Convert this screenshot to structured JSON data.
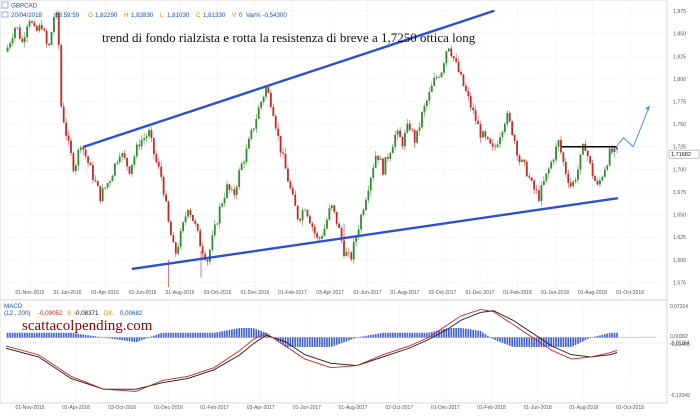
{
  "header": {
    "symbol": "GBPCAD",
    "date": "20/04/2018",
    "time": "23:59:59",
    "open": "1,82290",
    "high": "1,82830",
    "low": "1,81030",
    "close": "1,81330",
    "volume": "0",
    "var": "Var% -0,54300",
    "markers": [
      "O",
      "H",
      "L",
      "C",
      "V"
    ]
  },
  "chart_data": [
    {
      "type": "candlestick",
      "title": "trend di fondo rialzista e rotta la resistenza di breve a 1,7250 ottica long",
      "y_ticks": [
        "1,875",
        "1,850",
        "1,825",
        "1,800",
        "1,775",
        "1,750",
        "1,725",
        "1,700",
        "1,675",
        "1,650",
        "1,625",
        "1,600",
        "1,575"
      ],
      "ylim": [
        1.56,
        1.885
      ],
      "x_ticks": [
        "01-Nov-2015",
        "01-Jan-2016",
        "01-Apr-2016",
        "02-Jun-2016",
        "01-Aug-2016",
        "03-Oct-2016",
        "01-Dec-2016",
        "01-Feb-2017",
        "03-Apr-2017",
        "01-Jun-2017",
        "01-Aug-2017",
        "02-Oct-2017",
        "01-Dec-2017",
        "01-Feb-2018",
        "01-Jun-2018",
        "01-Aug-2018",
        "01-Oct-2018"
      ],
      "price_label": "1,71682",
      "price_level": 1.7168,
      "resistance_level": 1.725,
      "price_path": [
        [
          0,
          1.83
        ],
        [
          3,
          1.86
        ],
        [
          5,
          1.84
        ],
        [
          7,
          1.87
        ],
        [
          9,
          1.85
        ],
        [
          11,
          1.86
        ],
        [
          13,
          1.83
        ],
        [
          15,
          1.875
        ],
        [
          16,
          1.86
        ],
        [
          17,
          1.77
        ],
        [
          19,
          1.73
        ],
        [
          21,
          1.7
        ],
        [
          23,
          1.73
        ],
        [
          26,
          1.7
        ],
        [
          29,
          1.67
        ],
        [
          32,
          1.69
        ],
        [
          35,
          1.72
        ],
        [
          38,
          1.7
        ],
        [
          41,
          1.73
        ],
        [
          44,
          1.74
        ],
        [
          46,
          1.71
        ],
        [
          48,
          1.69
        ],
        [
          50,
          1.64
        ],
        [
          52,
          1.605
        ],
        [
          54,
          1.63
        ],
        [
          56,
          1.66
        ],
        [
          58,
          1.64
        ],
        [
          60,
          1.615
        ],
        [
          62,
          1.6
        ],
        [
          64,
          1.63
        ],
        [
          66,
          1.66
        ],
        [
          68,
          1.68
        ],
        [
          70,
          1.67
        ],
        [
          72,
          1.7
        ],
        [
          74,
          1.72
        ],
        [
          76,
          1.745
        ],
        [
          78,
          1.77
        ],
        [
          80,
          1.79
        ],
        [
          82,
          1.77
        ],
        [
          84,
          1.73
        ],
        [
          86,
          1.7
        ],
        [
          88,
          1.67
        ],
        [
          90,
          1.645
        ],
        [
          92,
          1.66
        ],
        [
          94,
          1.64
        ],
        [
          96,
          1.62
        ],
        [
          98,
          1.635
        ],
        [
          100,
          1.66
        ],
        [
          102,
          1.64
        ],
        [
          104,
          1.61
        ],
        [
          106,
          1.6
        ],
        [
          108,
          1.63
        ],
        [
          110,
          1.66
        ],
        [
          112,
          1.69
        ],
        [
          114,
          1.72
        ],
        [
          116,
          1.7
        ],
        [
          118,
          1.72
        ],
        [
          120,
          1.74
        ],
        [
          122,
          1.73
        ],
        [
          124,
          1.75
        ],
        [
          126,
          1.73
        ],
        [
          128,
          1.76
        ],
        [
          130,
          1.78
        ],
        [
          132,
          1.8
        ],
        [
          134,
          1.81
        ],
        [
          136,
          1.84
        ],
        [
          138,
          1.82
        ],
        [
          140,
          1.8
        ],
        [
          142,
          1.78
        ],
        [
          144,
          1.76
        ],
        [
          146,
          1.74
        ],
        [
          148,
          1.73
        ],
        [
          150,
          1.72
        ],
        [
          152,
          1.74
        ],
        [
          154,
          1.76
        ],
        [
          156,
          1.74
        ],
        [
          158,
          1.71
        ],
        [
          160,
          1.7
        ],
        [
          162,
          1.68
        ],
        [
          164,
          1.67
        ],
        [
          166,
          1.69
        ],
        [
          168,
          1.71
        ],
        [
          170,
          1.73
        ],
        [
          172,
          1.7
        ],
        [
          174,
          1.68
        ],
        [
          176,
          1.7
        ],
        [
          178,
          1.73
        ],
        [
          180,
          1.7
        ],
        [
          182,
          1.68
        ],
        [
          184,
          1.7
        ],
        [
          186,
          1.72
        ],
        [
          188,
          1.717
        ]
      ],
      "x_max": 200,
      "channel_upper": [
        [
          24,
          1.725
        ],
        [
          150,
          1.875
        ]
      ],
      "channel_lower": [
        [
          39,
          1.59
        ],
        [
          188,
          1.668
        ]
      ],
      "resistance_segment": [
        [
          171,
          188
        ]
      ],
      "projection": [
        [
          186,
          1.717
        ],
        [
          190,
          1.735
        ],
        [
          193,
          1.725
        ],
        [
          198,
          1.77
        ]
      ]
    },
    {
      "type": "macd",
      "label": "MACD",
      "params": "(12 , 200)",
      "values": [
        "-0,09052",
        "-0,08371",
        "0,00682"
      ],
      "value_markers": [
        "S",
        "Dif."
      ],
      "y_ticks": [
        "0,07314",
        "0,00302",
        "-0,01164",
        "-0,01466",
        "-0,13349"
      ],
      "ylim": [
        -0.145,
        0.08
      ],
      "x_ticks": [
        "01-Nov-2015",
        "01-Apr-2016",
        "03-Oct-2016",
        "01-Dec-2016",
        "01-Feb-2017",
        "03-Apr-2017",
        "01-Jun-2017",
        "01-Aug-2017",
        "02-Oct-2017",
        "01-Dec-2017",
        "01-Feb-2018",
        "01-Jun-2018",
        "01-Aug-2018",
        "01-Oct-2018"
      ],
      "macd_line": [
        [
          0,
          -0.02
        ],
        [
          10,
          -0.04
        ],
        [
          20,
          -0.09
        ],
        [
          30,
          -0.12
        ],
        [
          40,
          -0.125
        ],
        [
          48,
          -0.1
        ],
        [
          56,
          -0.09
        ],
        [
          64,
          -0.07
        ],
        [
          72,
          -0.03
        ],
        [
          76,
          -0.005
        ],
        [
          80,
          0.01
        ],
        [
          86,
          -0.02
        ],
        [
          92,
          -0.05
        ],
        [
          100,
          -0.07
        ],
        [
          108,
          -0.065
        ],
        [
          116,
          -0.04
        ],
        [
          124,
          -0.02
        ],
        [
          130,
          0.0
        ],
        [
          136,
          0.03
        ],
        [
          140,
          0.05
        ],
        [
          146,
          0.065
        ],
        [
          150,
          0.06
        ],
        [
          156,
          0.03
        ],
        [
          162,
          0.0
        ],
        [
          168,
          -0.03
        ],
        [
          174,
          -0.05
        ],
        [
          180,
          -0.045
        ],
        [
          186,
          -0.035
        ],
        [
          188,
          -0.03
        ]
      ],
      "signal_line": [
        [
          0,
          -0.025
        ],
        [
          10,
          -0.045
        ],
        [
          20,
          -0.095
        ],
        [
          30,
          -0.12
        ],
        [
          40,
          -0.12
        ],
        [
          48,
          -0.105
        ],
        [
          56,
          -0.095
        ],
        [
          64,
          -0.075
        ],
        [
          72,
          -0.04
        ],
        [
          76,
          -0.015
        ],
        [
          80,
          0.005
        ],
        [
          86,
          -0.01
        ],
        [
          92,
          -0.04
        ],
        [
          100,
          -0.06
        ],
        [
          108,
          -0.065
        ],
        [
          116,
          -0.045
        ],
        [
          124,
          -0.025
        ],
        [
          130,
          -0.005
        ],
        [
          136,
          0.02
        ],
        [
          140,
          0.04
        ],
        [
          146,
          0.058
        ],
        [
          150,
          0.062
        ],
        [
          156,
          0.04
        ],
        [
          162,
          0.01
        ],
        [
          168,
          -0.02
        ],
        [
          174,
          -0.04
        ],
        [
          180,
          -0.045
        ],
        [
          186,
          -0.04
        ],
        [
          188,
          -0.035
        ]
      ],
      "x_max": 200
    }
  ],
  "watermark": "scattacolpending.com",
  "colors": {
    "up": "#2e8b2e",
    "down": "#c62828",
    "channel": "#2d4fd6",
    "resistance": "#000000",
    "macd": "#c62828",
    "signal": "#1a1a1a",
    "histogram": "#3d5fd0",
    "grid": "#d9d9d9",
    "watermark": "#8b0000",
    "axis_text": "#555555",
    "header_text": "#1a4fb0"
  }
}
